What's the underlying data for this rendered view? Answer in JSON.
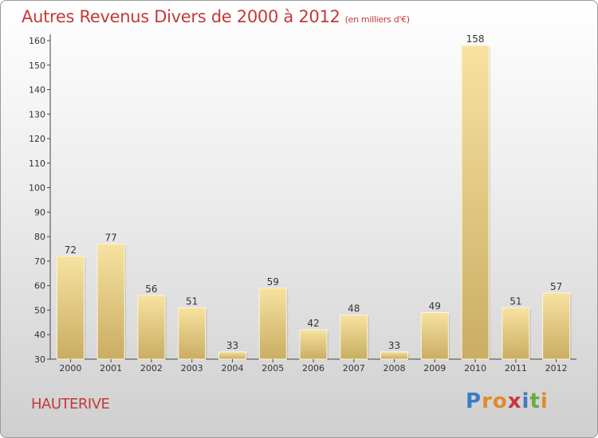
{
  "chart_data": {
    "type": "bar",
    "title": "Autres Revenus Divers de 2000 à 2012",
    "subtitle": "(en milliers d'€)",
    "categories": [
      "2000",
      "2001",
      "2002",
      "2003",
      "2004",
      "2005",
      "2006",
      "2007",
      "2008",
      "2009",
      "2010",
      "2011",
      "2012"
    ],
    "values": [
      72,
      77,
      56,
      51,
      33,
      59,
      42,
      48,
      33,
      49,
      158,
      51,
      57
    ],
    "ylim": [
      30,
      160
    ],
    "yticks": [
      30,
      40,
      50,
      60,
      70,
      80,
      90,
      100,
      110,
      120,
      130,
      140,
      150,
      160
    ],
    "xlabel": "",
    "ylabel": "",
    "grid": false,
    "bar_color_light": "#f7e2a0",
    "bar_color_dark": "#c9ad62"
  },
  "location": "HAUTERIVE",
  "logo": {
    "letters": [
      "P",
      "r",
      "o",
      "x",
      "i",
      "t",
      "i"
    ],
    "colors": [
      "#3b7dc4",
      "#e28a2a",
      "#e28a2a",
      "#cc3344",
      "#3b7dc4",
      "#6aaa3a",
      "#e28a2a"
    ]
  }
}
